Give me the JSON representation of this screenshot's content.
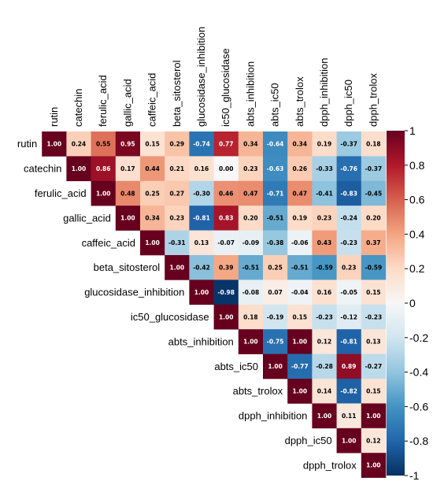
{
  "chart_data": {
    "type": "heatmap",
    "subtype": "correlation-upper-triangle",
    "variables": [
      "rutin",
      "catechin",
      "ferulic_acid",
      "gallic_acid",
      "caffeic_acid",
      "beta_sitosterol",
      "glucosidase_inhibition",
      "ic50_glucosidase",
      "abts_inhibition",
      "abts_ic50",
      "abts_trolox",
      "dpph_inhibition",
      "dpph_ic50",
      "dpph_trolox"
    ],
    "matrix": [
      [
        "1.00",
        "0.24",
        "0.55",
        "0.95",
        "0.15",
        "0.29",
        "-0.74",
        "0.77",
        "0.34",
        "-0.64",
        "0.34",
        "0.19",
        "-0.37",
        "0.18"
      ],
      [
        null,
        "1.00",
        "0.86",
        "0.17",
        "0.44",
        "0.21",
        "0.16",
        "0.00",
        "0.23",
        "-0.63",
        "0.26",
        "-0.33",
        "-0.76",
        "-0.37"
      ],
      [
        null,
        null,
        "1.00",
        "0.48",
        "0.25",
        "0.27",
        "-0.30",
        "0.46",
        "0.47",
        "-0.71",
        "0.47",
        "-0.41",
        "-0.83",
        "-0.45"
      ],
      [
        null,
        null,
        null,
        "1.00",
        "0.34",
        "0.23",
        "-0.81",
        "0.83",
        "0.20",
        "-0.51",
        "0.19",
        "0.23",
        "-0.24",
        "0.20"
      ],
      [
        null,
        null,
        null,
        null,
        "1.00",
        "-0.31",
        "0.13",
        "-0.07",
        "-0.09",
        "-0.38",
        "-0.06",
        "0.43",
        "-0.23",
        "0.37"
      ],
      [
        null,
        null,
        null,
        null,
        null,
        "1.00",
        "-0.42",
        "0.39",
        "-0.51",
        "0.25",
        "-0.51",
        "-0.59",
        "0.23",
        "-0.59"
      ],
      [
        null,
        null,
        null,
        null,
        null,
        null,
        "1.00",
        "-0.98",
        "-0.08",
        "0.07",
        "-0.04",
        "0.16",
        "-0.05",
        "0.15"
      ],
      [
        null,
        null,
        null,
        null,
        null,
        null,
        null,
        "1.00",
        "0.18",
        "-0.19",
        "0.15",
        "-0.23",
        "-0.12",
        "-0.23"
      ],
      [
        null,
        null,
        null,
        null,
        null,
        null,
        null,
        null,
        "1.00",
        "-0.75",
        "1.00",
        "0.12",
        "-0.81",
        "0.13"
      ],
      [
        null,
        null,
        null,
        null,
        null,
        null,
        null,
        null,
        null,
        "1.00",
        "-0.77",
        "-0.28",
        "0.89",
        "-0.27"
      ],
      [
        null,
        null,
        null,
        null,
        null,
        null,
        null,
        null,
        null,
        null,
        "1.00",
        "0.14",
        "-0.82",
        "0.15"
      ],
      [
        null,
        null,
        null,
        null,
        null,
        null,
        null,
        null,
        null,
        null,
        null,
        "1.00",
        "0.11",
        "1.00"
      ],
      [
        null,
        null,
        null,
        null,
        null,
        null,
        null,
        null,
        null,
        null,
        null,
        null,
        "1.00",
        "0.12"
      ],
      [
        null,
        null,
        null,
        null,
        null,
        null,
        null,
        null,
        null,
        null,
        null,
        null,
        null,
        "1.00"
      ]
    ],
    "color_scale": {
      "range": [
        -1,
        1
      ],
      "ticks": [
        "1",
        "0.8",
        "0.6",
        "0.4",
        "0.2",
        "0",
        "-0.2",
        "-0.4",
        "-0.6",
        "-0.8",
        "-1"
      ],
      "colors": [
        "#67001f",
        "#b2182b",
        "#d6604d",
        "#f4a582",
        "#fddbc7",
        "#f7f7f7",
        "#d1e5f0",
        "#92c5de",
        "#4393c3",
        "#2166ac",
        "#053061"
      ]
    },
    "legend_position": "right"
  }
}
